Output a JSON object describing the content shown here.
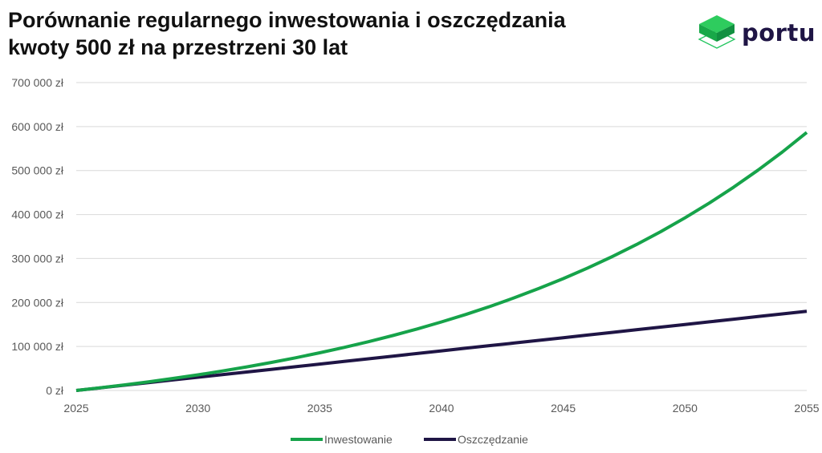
{
  "header": {
    "title_line1": "Porównanie regularnego inwestowania i oszczędzania",
    "title_line2": "kwoty 500 zł na przestrzeni 30 lat",
    "logo_text": "portu"
  },
  "colors": {
    "investing": "#16a34a",
    "saving": "#1f1545",
    "grid": "#d9d9d9",
    "logo_green": "#22c55e"
  },
  "chart_data": {
    "type": "line",
    "title": "Porównanie regularnego inwestowania i oszczędzania kwoty 500 zł na przestrzeni 30 lat",
    "xlabel": "",
    "ylabel": "",
    "xlim": [
      2025,
      2055
    ],
    "ylim": [
      0,
      700000
    ],
    "grid": true,
    "legend_position": "bottom",
    "x_ticks": [
      "2025",
      "2030",
      "2035",
      "2040",
      "2045",
      "2050",
      "2055"
    ],
    "y_ticks": [
      "0 zł",
      "100 000 zł",
      "200 000 zł",
      "300 000 zł",
      "400 000 zł",
      "500 000 zł",
      "600 000 zł",
      "700 000 zł"
    ],
    "x": [
      2025,
      2026,
      2027,
      2028,
      2029,
      2030,
      2031,
      2032,
      2033,
      2034,
      2035,
      2036,
      2037,
      2038,
      2039,
      2040,
      2041,
      2042,
      2043,
      2044,
      2045,
      2046,
      2047,
      2048,
      2049,
      2050,
      2051,
      2052,
      2053,
      2054,
      2055
    ],
    "series": [
      {
        "name": "Inwestowanie",
        "color": "#16a34a",
        "values": [
          0,
          6190,
          12816,
          19906,
          27494,
          35614,
          44303,
          53601,
          63554,
          74205,
          85602,
          97800,
          110853,
          124823,
          139773,
          155771,
          172893,
          191216,
          210824,
          231808,
          254261,
          278295,
          304014,
          331537,
          360991,
          392513,
          426246,
          462345,
          500979,
          542324,
          586570
        ]
      },
      {
        "name": "Oszczędzanie",
        "color": "#1f1545",
        "values": [
          0,
          6000,
          12000,
          18000,
          24000,
          30000,
          36000,
          42000,
          48000,
          54000,
          60000,
          66000,
          72000,
          78000,
          84000,
          90000,
          96000,
          102000,
          108000,
          114000,
          120000,
          126000,
          132000,
          138000,
          144000,
          150000,
          156000,
          162000,
          168000,
          174000,
          180000
        ]
      }
    ]
  }
}
